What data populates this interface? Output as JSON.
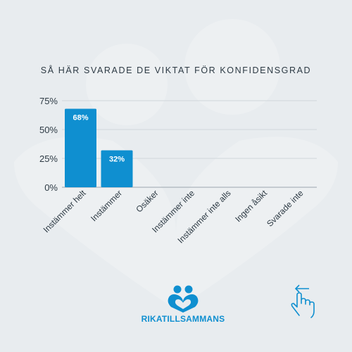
{
  "colors": {
    "background": "#e8ecef",
    "bar": "#0f8fd0",
    "brand": "#0f8fd0",
    "text": "#2d3a44",
    "gridline": "#cfd6db"
  },
  "chart_data": {
    "type": "bar",
    "title": "SÅ HÄR SVARADE DE VIKTAT FÖR KONFIDENSGRAD",
    "categories": [
      "Instämmer helt",
      "Instämmer",
      "Osäker",
      "Instämmer inte",
      "Instämmer inte alls",
      "Ingen åsikt",
      "Svarade inte"
    ],
    "values": [
      68,
      32,
      0,
      0,
      0,
      0,
      0
    ],
    "data_labels": [
      "68%",
      "32%",
      "",
      "",
      "",
      "",
      ""
    ],
    "y_ticks": [
      0,
      25,
      50,
      75
    ],
    "y_tick_labels": [
      "0%",
      "25%",
      "50%",
      "75%"
    ],
    "ylim": [
      0,
      75
    ],
    "grid": true,
    "xlabel": "",
    "ylabel": ""
  },
  "brand": {
    "name": "RIKATILLSAMMANS",
    "logo_icon": "two-people-heart-icon"
  },
  "nav": {
    "swipe_icon": "swipe-left-hand-icon"
  }
}
